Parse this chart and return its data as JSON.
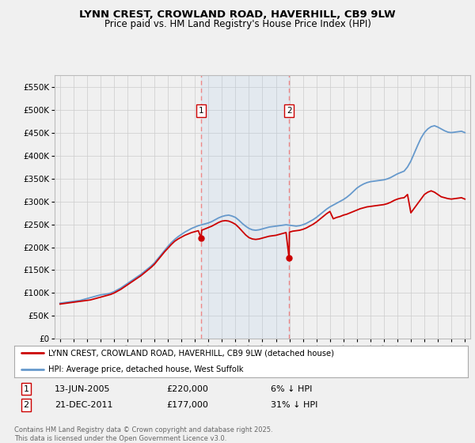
{
  "title_line1": "LYNN CREST, CROWLAND ROAD, HAVERHILL, CB9 9LW",
  "title_line2": "Price paid vs. HM Land Registry's House Price Index (HPI)",
  "legend_label1": "LYNN CREST, CROWLAND ROAD, HAVERHILL, CB9 9LW (detached house)",
  "legend_label2": "HPI: Average price, detached house, West Suffolk",
  "transaction1_date": "13-JUN-2005",
  "transaction1_price": "£220,000",
  "transaction1_note": "6% ↓ HPI",
  "transaction2_date": "21-DEC-2011",
  "transaction2_price": "£177,000",
  "transaction2_note": "31% ↓ HPI",
  "footnote": "Contains HM Land Registry data © Crown copyright and database right 2025.\nThis data is licensed under the Open Government Licence v3.0.",
  "transaction1_year": 2005.45,
  "transaction2_year": 2011.97,
  "ylim_max": 575000,
  "ylim_min": 0,
  "color_property": "#cc0000",
  "color_hpi": "#6699cc",
  "color_shading": "#ddeeff",
  "color_vline": "#ee8888",
  "background_color": "#f0f0f0",
  "plot_bg_color": "#f0f0f0",
  "years_hpi": [
    1995.0,
    1995.25,
    1995.5,
    1995.75,
    1996.0,
    1996.25,
    1996.5,
    1996.75,
    1997.0,
    1997.25,
    1997.5,
    1997.75,
    1998.0,
    1998.25,
    1998.5,
    1998.75,
    1999.0,
    1999.25,
    1999.5,
    1999.75,
    2000.0,
    2000.25,
    2000.5,
    2000.75,
    2001.0,
    2001.25,
    2001.5,
    2001.75,
    2002.0,
    2002.25,
    2002.5,
    2002.75,
    2003.0,
    2003.25,
    2003.5,
    2003.75,
    2004.0,
    2004.25,
    2004.5,
    2004.75,
    2005.0,
    2005.25,
    2005.5,
    2005.75,
    2006.0,
    2006.25,
    2006.5,
    2006.75,
    2007.0,
    2007.25,
    2007.5,
    2007.75,
    2008.0,
    2008.25,
    2008.5,
    2008.75,
    2009.0,
    2009.25,
    2009.5,
    2009.75,
    2010.0,
    2010.25,
    2010.5,
    2010.75,
    2011.0,
    2011.25,
    2011.5,
    2011.75,
    2012.0,
    2012.25,
    2012.5,
    2012.75,
    2013.0,
    2013.25,
    2013.5,
    2013.75,
    2014.0,
    2014.25,
    2014.5,
    2014.75,
    2015.0,
    2015.25,
    2015.5,
    2015.75,
    2016.0,
    2016.25,
    2016.5,
    2016.75,
    2017.0,
    2017.25,
    2017.5,
    2017.75,
    2018.0,
    2018.25,
    2018.5,
    2018.75,
    2019.0,
    2019.25,
    2019.5,
    2019.75,
    2020.0,
    2020.25,
    2020.5,
    2020.75,
    2021.0,
    2021.25,
    2021.5,
    2021.75,
    2022.0,
    2022.25,
    2022.5,
    2022.75,
    2023.0,
    2023.25,
    2023.5,
    2023.75,
    2024.0,
    2024.25,
    2024.5,
    2024.75,
    2025.0
  ],
  "hpi_values": [
    78000,
    79000,
    80000,
    81000,
    82000,
    83000,
    84000,
    86000,
    88000,
    90000,
    92000,
    94000,
    96000,
    97000,
    98000,
    100000,
    103000,
    107000,
    111000,
    116000,
    121000,
    126000,
    131000,
    136000,
    141000,
    147000,
    153000,
    159000,
    166000,
    175000,
    184000,
    193000,
    202000,
    210000,
    217000,
    223000,
    228000,
    233000,
    237000,
    241000,
    244000,
    247000,
    249000,
    251000,
    253000,
    256000,
    260000,
    264000,
    267000,
    269000,
    270000,
    268000,
    265000,
    259000,
    252000,
    246000,
    241000,
    238000,
    237000,
    238000,
    240000,
    242000,
    244000,
    245000,
    246000,
    247000,
    248000,
    249000,
    248000,
    247000,
    246000,
    247000,
    249000,
    252000,
    256000,
    260000,
    265000,
    271000,
    277000,
    283000,
    288000,
    292000,
    296000,
    300000,
    304000,
    309000,
    315000,
    322000,
    329000,
    334000,
    338000,
    341000,
    343000,
    344000,
    345000,
    346000,
    347000,
    349000,
    352000,
    356000,
    360000,
    363000,
    366000,
    375000,
    388000,
    405000,
    422000,
    438000,
    450000,
    458000,
    463000,
    465000,
    462000,
    458000,
    454000,
    451000,
    450000,
    451000,
    452000,
    453000,
    450000
  ],
  "years_prop": [
    1995.0,
    1995.25,
    1995.5,
    1995.75,
    1996.0,
    1996.25,
    1996.5,
    1996.75,
    1997.0,
    1997.25,
    1997.5,
    1997.75,
    1998.0,
    1998.25,
    1998.5,
    1998.75,
    1999.0,
    1999.25,
    1999.5,
    1999.75,
    2000.0,
    2000.25,
    2000.5,
    2000.75,
    2001.0,
    2001.25,
    2001.5,
    2001.75,
    2002.0,
    2002.25,
    2002.5,
    2002.75,
    2003.0,
    2003.25,
    2003.5,
    2003.75,
    2004.0,
    2004.25,
    2004.5,
    2004.75,
    2005.0,
    2005.25,
    2005.45,
    2005.5,
    2005.75,
    2006.0,
    2006.25,
    2006.5,
    2006.75,
    2007.0,
    2007.25,
    2007.5,
    2007.75,
    2008.0,
    2008.25,
    2008.5,
    2008.75,
    2009.0,
    2009.25,
    2009.5,
    2009.75,
    2010.0,
    2010.25,
    2010.5,
    2010.75,
    2011.0,
    2011.25,
    2011.5,
    2011.75,
    2011.97,
    2012.0,
    2012.25,
    2012.5,
    2012.75,
    2013.0,
    2013.25,
    2013.5,
    2013.75,
    2014.0,
    2014.25,
    2014.5,
    2014.75,
    2015.0,
    2015.25,
    2015.5,
    2015.75,
    2016.0,
    2016.25,
    2016.5,
    2016.75,
    2017.0,
    2017.25,
    2017.5,
    2017.75,
    2018.0,
    2018.25,
    2018.5,
    2018.75,
    2019.0,
    2019.25,
    2019.5,
    2019.75,
    2020.0,
    2020.25,
    2020.5,
    2020.75,
    2021.0,
    2021.25,
    2021.5,
    2021.75,
    2022.0,
    2022.25,
    2022.5,
    2022.75,
    2023.0,
    2023.25,
    2023.5,
    2023.75,
    2024.0,
    2024.25,
    2024.5,
    2024.75,
    2025.0
  ],
  "prop_values": [
    76000,
    77000,
    78000,
    79000,
    80000,
    81000,
    82000,
    83000,
    84000,
    85000,
    87000,
    89000,
    91000,
    93000,
    95000,
    97000,
    100000,
    104000,
    108000,
    113000,
    118000,
    123000,
    128000,
    133000,
    138000,
    144000,
    150000,
    156000,
    163000,
    172000,
    181000,
    190000,
    198000,
    206000,
    213000,
    218000,
    222000,
    226000,
    229000,
    232000,
    234000,
    236000,
    220000,
    237000,
    240000,
    243000,
    246000,
    250000,
    254000,
    257000,
    258000,
    257000,
    254000,
    250000,
    243000,
    235000,
    227000,
    221000,
    218000,
    217000,
    218000,
    220000,
    222000,
    224000,
    225000,
    226000,
    228000,
    230000,
    232000,
    177000,
    233000,
    235000,
    236000,
    237000,
    239000,
    242000,
    246000,
    250000,
    255000,
    261000,
    267000,
    273000,
    278000,
    262000,
    265000,
    267000,
    270000,
    272000,
    275000,
    278000,
    281000,
    284000,
    286000,
    288000,
    289000,
    290000,
    291000,
    292000,
    293000,
    295000,
    298000,
    302000,
    305000,
    307000,
    308000,
    315000,
    275000,
    285000,
    295000,
    305000,
    315000,
    320000,
    323000,
    320000,
    315000,
    310000,
    308000,
    306000,
    305000,
    306000,
    307000,
    308000,
    305000
  ]
}
